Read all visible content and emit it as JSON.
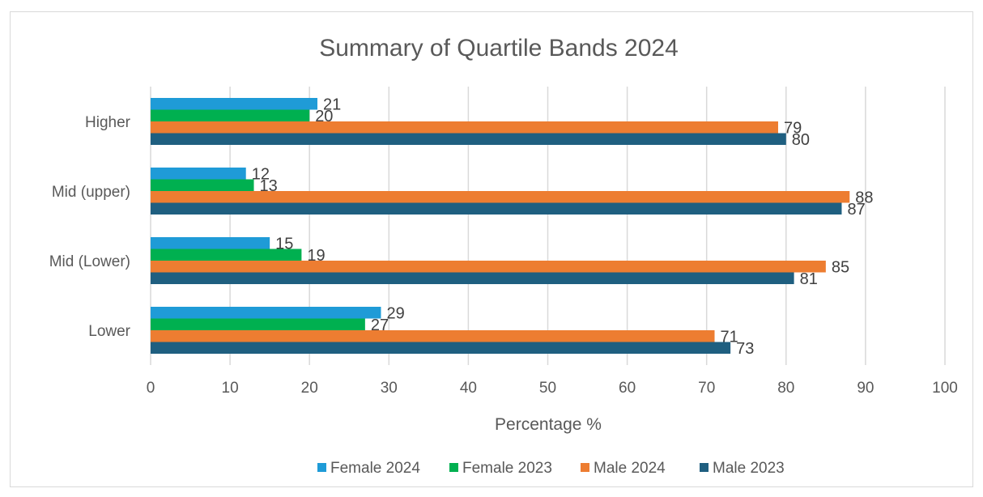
{
  "chart_data": {
    "type": "bar",
    "orientation": "horizontal",
    "title": "Summary of Quartile Bands 2024",
    "xlabel": "Percentage %",
    "ylabel": "",
    "xlim": [
      0,
      100
    ],
    "x_ticks": [
      0,
      10,
      20,
      30,
      40,
      50,
      60,
      70,
      80,
      90,
      100
    ],
    "grid": true,
    "legend_position": "bottom",
    "categories": [
      "Higher",
      "Mid (upper)",
      "Mid (Lower)",
      "Lower"
    ],
    "series": [
      {
        "name": "Female 2024",
        "color": "#1f9bd7",
        "values": [
          21,
          12,
          15,
          29
        ]
      },
      {
        "name": "Female 2023",
        "color": "#00b050",
        "values": [
          20,
          13,
          19,
          27
        ]
      },
      {
        "name": "Male 2024",
        "color": "#ed7d31",
        "values": [
          79,
          88,
          85,
          71
        ]
      },
      {
        "name": "Male 2023",
        "color": "#1f5f80",
        "values": [
          80,
          87,
          81,
          73
        ]
      }
    ]
  }
}
